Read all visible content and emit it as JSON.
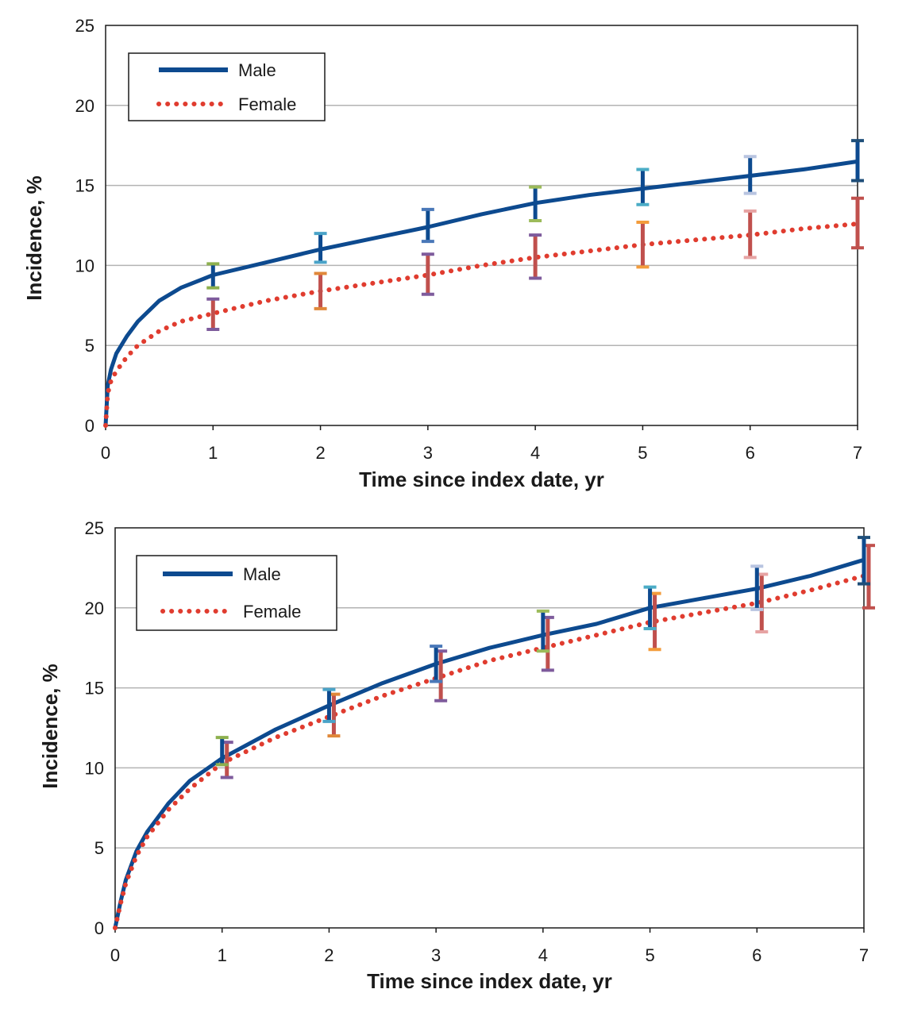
{
  "colors": {
    "male": "#0d4a8f",
    "female": "#e03c2f",
    "errorbar_female": "#c0504d",
    "grid": "#b3b3b3",
    "axis": "#1a1a1a"
  },
  "chart_data": [
    {
      "type": "line",
      "title": "",
      "xlabel": "Time since index date, yr",
      "ylabel": "Incidence, %",
      "xlim": [
        0,
        7
      ],
      "ylim": [
        0,
        25
      ],
      "xticks": [
        "0",
        "1",
        "2",
        "3",
        "4",
        "5",
        "6",
        "7"
      ],
      "yticks": [
        "0",
        "5",
        "10",
        "15",
        "20",
        "25"
      ],
      "grid": "horizontal",
      "legend_position": "top-left",
      "series": [
        {
          "name": "Male",
          "style": "solid",
          "x": [
            0,
            0.02,
            0.05,
            0.1,
            0.2,
            0.3,
            0.5,
            0.7,
            1,
            1.5,
            2,
            2.5,
            3,
            3.5,
            4,
            4.5,
            5,
            5.5,
            6,
            6.5,
            7
          ],
          "y": [
            0,
            2.5,
            3.5,
            4.5,
            5.6,
            6.5,
            7.8,
            8.6,
            9.4,
            10.2,
            11.0,
            11.7,
            12.4,
            13.2,
            13.9,
            14.4,
            14.8,
            15.2,
            15.6,
            16.0,
            16.5
          ],
          "errorbars": [
            {
              "x": 1,
              "low": 8.6,
              "high": 10.1
            },
            {
              "x": 2,
              "low": 10.2,
              "high": 12.0
            },
            {
              "x": 3,
              "low": 11.5,
              "high": 13.5
            },
            {
              "x": 4,
              "low": 12.8,
              "high": 14.9
            },
            {
              "x": 5,
              "low": 13.8,
              "high": 16.0
            },
            {
              "x": 6,
              "low": 14.5,
              "high": 16.8
            },
            {
              "x": 7,
              "low": 15.3,
              "high": 17.8
            }
          ]
        },
        {
          "name": "Female",
          "style": "dotted",
          "x": [
            0,
            0.02,
            0.05,
            0.1,
            0.2,
            0.3,
            0.5,
            0.7,
            1,
            1.5,
            2,
            2.5,
            3,
            3.5,
            4,
            4.5,
            5,
            5.5,
            6,
            6.5,
            7
          ],
          "y": [
            0,
            2.0,
            2.8,
            3.4,
            4.3,
            5.0,
            5.9,
            6.5,
            7.0,
            7.8,
            8.4,
            8.9,
            9.4,
            10.0,
            10.5,
            10.9,
            11.3,
            11.6,
            11.9,
            12.3,
            12.6
          ],
          "errorbars": [
            {
              "x": 1,
              "low": 6.0,
              "high": 7.9
            },
            {
              "x": 2,
              "low": 7.3,
              "high": 9.5
            },
            {
              "x": 3,
              "low": 8.2,
              "high": 10.7
            },
            {
              "x": 4,
              "low": 9.2,
              "high": 11.9
            },
            {
              "x": 5,
              "low": 9.9,
              "high": 12.7
            },
            {
              "x": 6,
              "low": 10.5,
              "high": 13.4
            },
            {
              "x": 7,
              "low": 11.1,
              "high": 14.2
            }
          ]
        }
      ]
    },
    {
      "type": "line",
      "title": "",
      "xlabel": "Time since index date, yr",
      "ylabel": "Incidence, %",
      "xlim": [
        0,
        7
      ],
      "ylim": [
        0,
        25
      ],
      "xticks": [
        "0",
        "1",
        "2",
        "3",
        "4",
        "5",
        "6",
        "7"
      ],
      "yticks": [
        "0",
        "5",
        "10",
        "15",
        "20",
        "25"
      ],
      "grid": "horizontal",
      "legend_position": "top-left",
      "series": [
        {
          "name": "Male",
          "style": "solid",
          "x": [
            0,
            0.05,
            0.1,
            0.2,
            0.3,
            0.5,
            0.7,
            1,
            1.5,
            2,
            2.5,
            3,
            3.5,
            4,
            4.5,
            5,
            5.5,
            6,
            6.5,
            7
          ],
          "y": [
            0,
            1.6,
            3.0,
            4.8,
            6.0,
            7.8,
            9.2,
            10.6,
            12.4,
            13.9,
            15.3,
            16.5,
            17.5,
            18.3,
            19.0,
            20.0,
            20.6,
            21.2,
            22.0,
            23.0
          ],
          "errorbars": [
            {
              "x": 1,
              "low": 10.2,
              "high": 11.9
            },
            {
              "x": 2,
              "low": 12.9,
              "high": 14.9
            },
            {
              "x": 3,
              "low": 15.4,
              "high": 17.6
            },
            {
              "x": 4,
              "low": 17.3,
              "high": 19.8
            },
            {
              "x": 5,
              "low": 18.7,
              "high": 21.3
            },
            {
              "x": 6,
              "low": 19.9,
              "high": 22.6
            },
            {
              "x": 7,
              "low": 21.5,
              "high": 24.4
            }
          ]
        },
        {
          "name": "Female",
          "style": "dotted",
          "x": [
            0,
            0.05,
            0.1,
            0.2,
            0.3,
            0.5,
            0.7,
            1,
            1.5,
            2,
            2.5,
            3,
            3.5,
            4,
            4.5,
            5,
            5.5,
            6,
            6.5,
            7
          ],
          "y": [
            0,
            1.5,
            2.8,
            4.5,
            5.7,
            7.4,
            8.7,
            10.3,
            11.9,
            13.2,
            14.5,
            15.6,
            16.7,
            17.5,
            18.3,
            19.1,
            19.7,
            20.3,
            21.1,
            22.0
          ],
          "errorbars": [
            {
              "x": 1,
              "low": 9.4,
              "high": 11.6
            },
            {
              "x": 2,
              "low": 12.0,
              "high": 14.6
            },
            {
              "x": 3,
              "low": 14.2,
              "high": 17.3
            },
            {
              "x": 4,
              "low": 16.1,
              "high": 19.4
            },
            {
              "x": 5,
              "low": 17.4,
              "high": 20.9
            },
            {
              "x": 6,
              "low": 18.5,
              "high": 22.1
            },
            {
              "x": 7,
              "low": 20.0,
              "high": 23.9
            }
          ]
        }
      ]
    }
  ]
}
